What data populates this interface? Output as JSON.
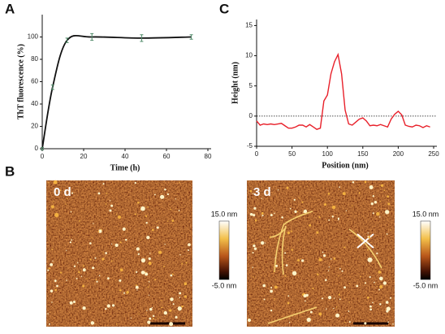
{
  "chart_data": [
    {
      "type": "line",
      "xlabel": "Time (h)",
      "ylabel": "ThT fluorescence (%)",
      "x": [
        0,
        5,
        12,
        24,
        48,
        72
      ],
      "series": [
        {
          "color": "#111111",
          "values": [
            0,
            55,
            97,
            100,
            99,
            100
          ],
          "errors": [
            1,
            2,
            2,
            3,
            3,
            2
          ]
        }
      ],
      "xlim": [
        0,
        80
      ],
      "xticks": [
        0,
        20,
        40,
        60,
        80
      ],
      "ylim": [
        0,
        120
      ],
      "yticks": [
        0,
        20,
        40,
        60,
        80,
        100
      ],
      "error_color": "#4f8a68"
    },
    {
      "type": "line",
      "xlabel": "Position (nm)",
      "ylabel": "Height (nm)",
      "x": [
        0,
        5,
        10,
        15,
        20,
        25,
        30,
        35,
        40,
        45,
        50,
        55,
        60,
        65,
        70,
        75,
        80,
        85,
        90,
        95,
        100,
        105,
        110,
        115,
        120,
        125,
        130,
        135,
        140,
        145,
        150,
        155,
        160,
        165,
        170,
        175,
        180,
        185,
        190,
        195,
        200,
        205,
        210,
        215,
        220,
        225,
        230,
        235,
        240,
        245
      ],
      "series": [
        {
          "color": "#e8202a",
          "values": [
            -0.8,
            -1.5,
            -1.3,
            -1.4,
            -1.3,
            -1.4,
            -1.3,
            -1.2,
            -1.6,
            -2.0,
            -2.0,
            -1.8,
            -1.5,
            -1.5,
            -1.8,
            -1.4,
            -1.8,
            -2.2,
            -2.0,
            2.5,
            3.5,
            7,
            9,
            10.2,
            7,
            1,
            -1.3,
            -1.5,
            -1.0,
            -0.5,
            -0.3,
            -0.8,
            -1.6,
            -1.5,
            -1.6,
            -1.4,
            -1.6,
            -1.8,
            -0.5,
            0.3,
            0.8,
            0.2,
            -1.5,
            -1.7,
            -1.8,
            -1.5,
            -1.6,
            -1.9,
            -1.6,
            -1.8
          ]
        }
      ],
      "xlim": [
        0,
        250
      ],
      "xticks": [
        0,
        50,
        100,
        150,
        200,
        250
      ],
      "ylim": [
        -5,
        16
      ],
      "yticks": [
        -5,
        0,
        5,
        10,
        15
      ],
      "reference_line": 0
    }
  ],
  "panels": {
    "a": "A",
    "b": "B",
    "c": "C"
  },
  "images": [
    {
      "label": "0 d",
      "scale_max": "15.0 nm",
      "scale_min": "-5.0 nm"
    },
    {
      "label": "3 d",
      "scale_max": "15.0 nm",
      "scale_min": "-5.0 nm"
    }
  ]
}
